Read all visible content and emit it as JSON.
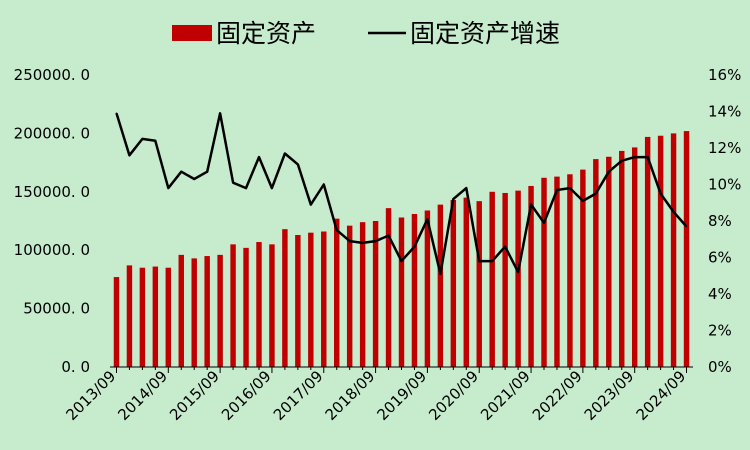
{
  "chart_data": {
    "type": "bar",
    "legend_placement": "top",
    "grid": false,
    "colors": {
      "bar": "#c00000",
      "line": "#000000",
      "background": "#c6ebcd"
    },
    "series": [
      {
        "name": "固定资产",
        "type": "bar",
        "axis": "left",
        "values": [
          77000,
          87000,
          85000,
          86000,
          85000,
          96000,
          93000,
          95000,
          96000,
          105000,
          102000,
          107000,
          105000,
          118000,
          113000,
          115000,
          116000,
          127000,
          121000,
          124000,
          125000,
          136000,
          128000,
          131000,
          134000,
          139000,
          143000,
          145000,
          142000,
          150000,
          149000,
          151000,
          155000,
          162000,
          163000,
          165000,
          169000,
          178000,
          180000,
          185000,
          188000,
          197000,
          198000,
          200000,
          202000
        ]
      },
      {
        "name": "固定资产增速",
        "type": "line",
        "axis": "right",
        "values": [
          13.9,
          11.6,
          12.5,
          12.4,
          9.8,
          10.7,
          10.3,
          10.7,
          13.9,
          10.1,
          9.8,
          11.5,
          9.8,
          11.7,
          11.1,
          8.9,
          10.0,
          7.5,
          6.9,
          6.8,
          6.9,
          7.2,
          5.8,
          6.6,
          8.1,
          5.1,
          9.2,
          9.8,
          5.8,
          5.8,
          6.6,
          5.2,
          8.9,
          7.9,
          9.7,
          9.8,
          9.1,
          9.5,
          10.7,
          11.3,
          11.5,
          11.5,
          9.5,
          8.5,
          7.7
        ]
      }
    ],
    "y_left": {
      "ylim": [
        0,
        250000
      ],
      "ticks": [
        "0. 0",
        "50000. 0",
        "100000. 0",
        "150000. 0",
        "200000. 0",
        "250000. 0"
      ]
    },
    "y_right": {
      "ylim": [
        0,
        16
      ],
      "ticks": [
        "0%",
        "2%",
        "4%",
        "6%",
        "8%",
        "10%",
        "12%",
        "14%",
        "16%"
      ]
    },
    "x_tick_labels": [
      "2013/09",
      "2014/09",
      "2015/09",
      "2016/09",
      "2017/09",
      "2018/09",
      "2019/09",
      "2020/09",
      "2021/09",
      "2022/09",
      "2023/09",
      "2024/09"
    ]
  }
}
